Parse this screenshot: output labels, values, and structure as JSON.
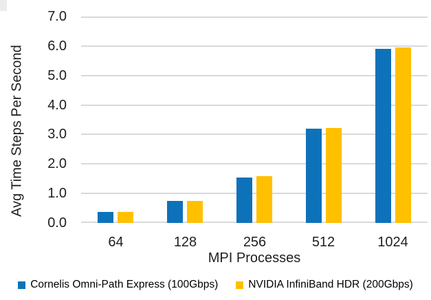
{
  "chart_data": {
    "type": "bar",
    "title": "",
    "categories": [
      "64",
      "128",
      "256",
      "512",
      "1024"
    ],
    "series": [
      {
        "name": "Cornelis Omni-Path Express (100Gbps)",
        "color": "#0d72ba",
        "values": [
          0.38,
          0.74,
          1.55,
          3.2,
          5.9
        ]
      },
      {
        "name": "NVIDIA InfiniBand HDR (200Gbps)",
        "color": "#ffc000",
        "values": [
          0.38,
          0.75,
          1.58,
          3.22,
          5.95
        ]
      }
    ],
    "xlabel": "MPI Processes",
    "ylabel": "Avg Time Steps Per Second",
    "ylim": [
      0,
      7
    ],
    "y_ticks": [
      "0.0",
      "1.0",
      "2.0",
      "3.0",
      "4.0",
      "5.0",
      "6.0",
      "7.0"
    ],
    "grid": "horizontal",
    "legend_position": "bottom"
  },
  "colors": {
    "gridline": "#d9d9d9",
    "text": "#1f1f1f",
    "background": "#ffffff"
  }
}
